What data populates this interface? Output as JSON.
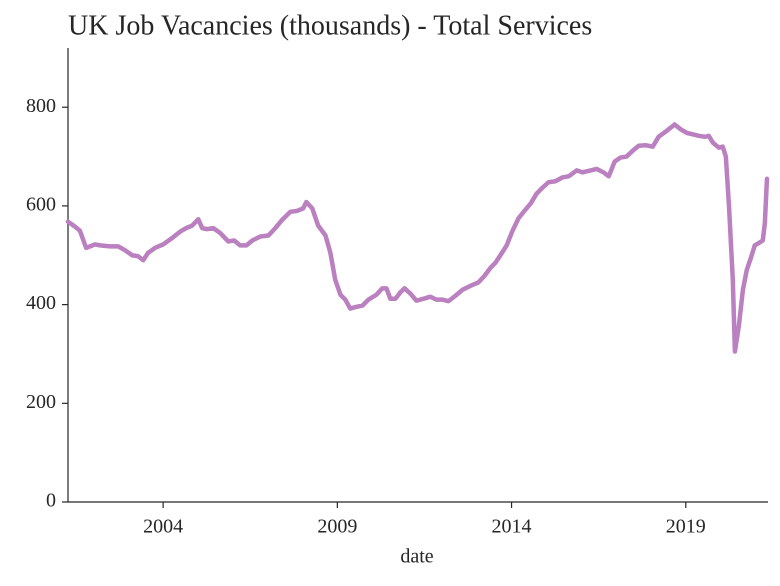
{
  "chart_data": {
    "type": "line",
    "title": "UK Job Vacancies (thousands) - Total Services",
    "xlabel": "date",
    "x": [
      2001.27,
      2001.47,
      2001.61,
      2001.79,
      2002.05,
      2002.19,
      2002.48,
      2002.71,
      2002.91,
      2003.11,
      2003.28,
      2003.43,
      2003.57,
      2003.77,
      2004.0,
      2004.26,
      2004.49,
      2004.66,
      2004.83,
      2005.01,
      2005.12,
      2005.26,
      2005.44,
      2005.64,
      2005.87,
      2006.04,
      2006.21,
      2006.39,
      2006.56,
      2006.79,
      2007.02,
      2007.22,
      2007.42,
      2007.65,
      2007.85,
      2008.02,
      2008.11,
      2008.28,
      2008.45,
      2008.66,
      2008.8,
      2008.94,
      2009.09,
      2009.23,
      2009.37,
      2009.52,
      2009.72,
      2009.89,
      2010.12,
      2010.29,
      2010.41,
      2010.52,
      2010.67,
      2010.81,
      2010.93,
      2011.1,
      2011.27,
      2011.53,
      2011.67,
      2011.84,
      2012.02,
      2012.19,
      2012.39,
      2012.59,
      2012.82,
      2013.05,
      2013.22,
      2013.4,
      2013.54,
      2013.68,
      2013.86,
      2014.03,
      2014.2,
      2014.37,
      2014.55,
      2014.72,
      2014.89,
      2015.06,
      2015.26,
      2015.47,
      2015.64,
      2015.87,
      2016.04,
      2016.27,
      2016.44,
      2016.64,
      2016.79,
      2016.96,
      2017.13,
      2017.3,
      2017.48,
      2017.65,
      2017.85,
      2018.05,
      2018.22,
      2018.45,
      2018.68,
      2018.86,
      2019.03,
      2019.2,
      2019.37,
      2019.55,
      2019.66,
      2019.78,
      2019.95,
      2020.06,
      2020.15,
      2020.24,
      2020.35,
      2020.41,
      2020.52,
      2020.64,
      2020.75,
      2020.87,
      2020.98,
      2021.1,
      2021.21,
      2021.27,
      2021.33
    ],
    "series": [
      {
        "name": "Total Services",
        "color": "#bb80bf",
        "values": [
          568,
          558,
          550,
          515,
          522,
          520,
          518,
          518,
          510,
          500,
          498,
          490,
          505,
          515,
          522,
          535,
          548,
          555,
          560,
          573,
          555,
          553,
          555,
          545,
          528,
          530,
          520,
          520,
          530,
          538,
          540,
          555,
          572,
          588,
          590,
          595,
          608,
          595,
          560,
          540,
          505,
          450,
          420,
          410,
          392,
          395,
          398,
          410,
          420,
          433,
          433,
          412,
          412,
          425,
          433,
          422,
          408,
          413,
          416,
          410,
          410,
          407,
          418,
          430,
          438,
          445,
          458,
          475,
          485,
          500,
          520,
          550,
          575,
          590,
          605,
          625,
          637,
          648,
          650,
          658,
          660,
          672,
          668,
          672,
          675,
          668,
          660,
          690,
          698,
          700,
          712,
          722,
          723,
          720,
          740,
          752,
          765,
          755,
          748,
          745,
          742,
          740,
          742,
          728,
          718,
          720,
          700,
          600,
          450,
          305,
          355,
          430,
          470,
          495,
          520,
          525,
          530,
          565,
          655
        ]
      }
    ],
    "xlim": [
      2001.27,
      2021.36
    ],
    "xticks": [
      2004,
      2009,
      2014,
      2019
    ],
    "ylim": [
      0,
      920
    ],
    "yticks": [
      0,
      200,
      400,
      600,
      800
    ]
  }
}
